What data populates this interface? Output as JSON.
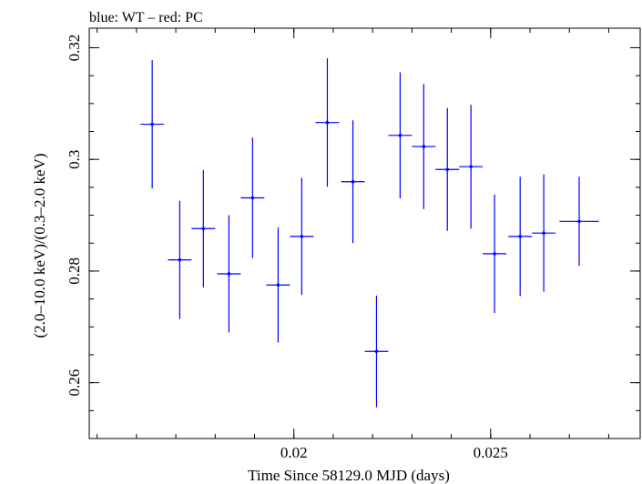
{
  "chart_data": {
    "type": "scatter",
    "title": "blue: WT – red: PC",
    "xlabel": "Time Since 58129.0 MJD (days)",
    "ylabel": "(2.0–10.0 keV)/(0.3–2.0 keV)",
    "xlim": [
      0.0148,
      0.0288
    ],
    "ylim": [
      0.25,
      0.3235
    ],
    "xticks": [
      {
        "value": 0.02,
        "label": "0.02"
      },
      {
        "value": 0.025,
        "label": "0.025"
      }
    ],
    "yticks": [
      {
        "value": 0.26,
        "label": "0.26"
      },
      {
        "value": 0.28,
        "label": "0.28"
      },
      {
        "value": 0.3,
        "label": "0.3"
      },
      {
        "value": 0.32,
        "label": "0.32"
      }
    ],
    "grid": false,
    "colors": {
      "WT": "#0000ff",
      "PC": "#ff0000"
    },
    "series": [
      {
        "name": "WT",
        "color": "#0000ff",
        "points": [
          {
            "x": 0.0164,
            "xerr": 0.0003,
            "y": 0.3063,
            "yerr": 0.0115
          },
          {
            "x": 0.0171,
            "xerr": 0.0003,
            "y": 0.282,
            "yerr": 0.0106
          },
          {
            "x": 0.0177,
            "xerr": 0.0003,
            "y": 0.2876,
            "yerr": 0.0105
          },
          {
            "x": 0.01835,
            "xerr": 0.0003,
            "y": 0.2795,
            "yerr": 0.0105
          },
          {
            "x": 0.01895,
            "xerr": 0.0003,
            "y": 0.2931,
            "yerr": 0.0108
          },
          {
            "x": 0.0196,
            "xerr": 0.0003,
            "y": 0.2775,
            "yerr": 0.0103
          },
          {
            "x": 0.0202,
            "xerr": 0.0003,
            "y": 0.2862,
            "yerr": 0.0105
          },
          {
            "x": 0.02085,
            "xerr": 0.0003,
            "y": 0.3066,
            "yerr": 0.0115
          },
          {
            "x": 0.0215,
            "xerr": 0.0003,
            "y": 0.296,
            "yerr": 0.011
          },
          {
            "x": 0.0221,
            "xerr": 0.0003,
            "y": 0.2656,
            "yerr": 0.01
          },
          {
            "x": 0.0227,
            "xerr": 0.0003,
            "y": 0.3043,
            "yerr": 0.0113
          },
          {
            "x": 0.0233,
            "xerr": 0.0003,
            "y": 0.3023,
            "yerr": 0.0112
          },
          {
            "x": 0.0239,
            "xerr": 0.0003,
            "y": 0.2982,
            "yerr": 0.011
          },
          {
            "x": 0.0245,
            "xerr": 0.0003,
            "y": 0.2987,
            "yerr": 0.0111
          },
          {
            "x": 0.0251,
            "xerr": 0.0003,
            "y": 0.2831,
            "yerr": 0.0106
          },
          {
            "x": 0.02575,
            "xerr": 0.0003,
            "y": 0.2862,
            "yerr": 0.0107
          },
          {
            "x": 0.02635,
            "xerr": 0.0003,
            "y": 0.2868,
            "yerr": 0.0105
          },
          {
            "x": 0.02725,
            "xerr": 0.0005,
            "y": 0.2889,
            "yerr": 0.008
          }
        ]
      }
    ]
  }
}
